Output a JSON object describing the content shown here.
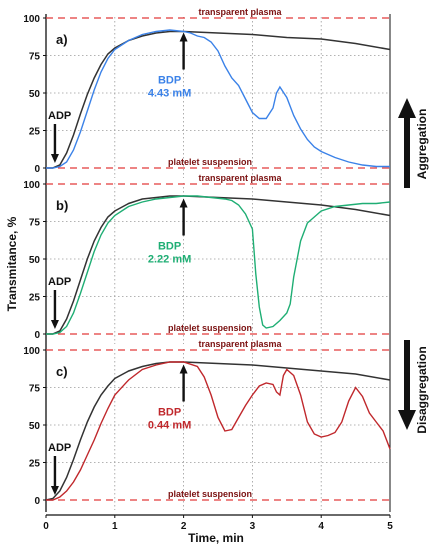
{
  "chart_data": {
    "type": "line",
    "ylabel": "Transmitance, %",
    "xlabel": "Time, min",
    "xlim": [
      0,
      5
    ],
    "ylim": [
      0,
      100
    ],
    "xticks": [
      0,
      1,
      2,
      3,
      4,
      5
    ],
    "yticks": [
      0,
      25,
      50,
      75,
      100
    ],
    "grid": true,
    "ref_top_label": "transparent plasma",
    "ref_bottom_label": "platelet suspension",
    "adp_label": "ADP",
    "adp_time": 0.13,
    "agent_time": 2.0,
    "side_labels": {
      "top": "Aggregation",
      "bottom": "Disaggregation"
    },
    "colors": {
      "control": "#333333",
      "a": "#3b82e8",
      "b": "#1fae74",
      "c": "#c0282c",
      "ref": "#e23b3b"
    },
    "panels": [
      {
        "label": "a)",
        "agent": "BDP",
        "dose": "4.43 mM",
        "control": {
          "x": [
            0,
            0.1,
            0.2,
            0.3,
            0.4,
            0.5,
            0.6,
            0.7,
            0.8,
            0.9,
            1.0,
            1.2,
            1.4,
            1.6,
            1.8,
            2.0,
            2.5,
            3.0,
            3.5,
            4.0,
            4.5,
            5.0
          ],
          "y": [
            0,
            0,
            2,
            10,
            22,
            36,
            49,
            60,
            69,
            76,
            80,
            85,
            88,
            90,
            91,
            91,
            90,
            89,
            87,
            86,
            83,
            79
          ]
        },
        "series": {
          "x": [
            0,
            0.1,
            0.2,
            0.3,
            0.4,
            0.5,
            0.6,
            0.7,
            0.8,
            0.9,
            1.0,
            1.2,
            1.4,
            1.6,
            1.8,
            2.0,
            2.1,
            2.2,
            2.3,
            2.4,
            2.5,
            2.6,
            2.7,
            2.8,
            2.9,
            3.0,
            3.1,
            3.2,
            3.3,
            3.35,
            3.4,
            3.5,
            3.6,
            3.7,
            3.8,
            3.9,
            4.0,
            4.2,
            4.4,
            4.6,
            4.8,
            5.0
          ],
          "y": [
            0,
            0,
            1,
            4,
            12,
            24,
            38,
            52,
            64,
            73,
            79,
            85,
            89,
            91,
            92,
            91,
            90,
            88,
            87,
            84,
            78,
            68,
            60,
            55,
            46,
            37,
            33,
            33,
            40,
            50,
            54,
            47,
            35,
            26,
            19,
            14,
            11,
            7,
            4,
            2,
            1,
            1
          ]
        }
      },
      {
        "label": "b)",
        "agent": "BDP",
        "dose": "2.22 mM",
        "control": {
          "x": [
            0,
            0.1,
            0.2,
            0.3,
            0.4,
            0.5,
            0.6,
            0.7,
            0.8,
            0.9,
            1.0,
            1.2,
            1.4,
            1.6,
            1.8,
            2.0,
            2.5,
            3.0,
            3.5,
            4.0,
            4.5,
            5.0
          ],
          "y": [
            0,
            0,
            2,
            10,
            22,
            36,
            50,
            62,
            71,
            78,
            82,
            87,
            90,
            91,
            92,
            92,
            91,
            90,
            88,
            86,
            83,
            79
          ]
        },
        "series": {
          "x": [
            0,
            0.1,
            0.2,
            0.3,
            0.4,
            0.5,
            0.6,
            0.7,
            0.8,
            0.9,
            1.0,
            1.2,
            1.4,
            1.6,
            1.8,
            2.0,
            2.2,
            2.4,
            2.6,
            2.7,
            2.8,
            2.9,
            3.0,
            3.05,
            3.1,
            3.15,
            3.2,
            3.3,
            3.4,
            3.5,
            3.55,
            3.6,
            3.7,
            3.8,
            4.0,
            4.2,
            4.4,
            4.6,
            4.8,
            5.0
          ],
          "y": [
            0,
            0,
            1,
            5,
            14,
            27,
            41,
            55,
            66,
            74,
            79,
            85,
            88,
            90,
            91,
            92,
            92,
            91,
            90,
            89,
            86,
            80,
            70,
            40,
            18,
            6,
            4,
            5,
            9,
            14,
            20,
            38,
            62,
            74,
            82,
            85,
            86,
            87,
            87,
            88
          ]
        }
      },
      {
        "label": "c)",
        "agent": "BDP",
        "dose": "0.44 mM",
        "control": {
          "x": [
            0,
            0.1,
            0.2,
            0.3,
            0.4,
            0.5,
            0.6,
            0.7,
            0.8,
            0.9,
            1.0,
            1.2,
            1.4,
            1.6,
            1.8,
            2.0,
            2.5,
            3.0,
            3.5,
            4.0,
            4.5,
            5.0
          ],
          "y": [
            0,
            1,
            6,
            15,
            27,
            40,
            52,
            62,
            70,
            76,
            81,
            86,
            89,
            91,
            92,
            92,
            91,
            90,
            88,
            86,
            84,
            80
          ]
        },
        "series": {
          "x": [
            0,
            0.1,
            0.2,
            0.3,
            0.4,
            0.5,
            0.6,
            0.7,
            0.8,
            0.9,
            1.0,
            1.2,
            1.4,
            1.6,
            1.8,
            2.0,
            2.2,
            2.3,
            2.4,
            2.5,
            2.6,
            2.7,
            2.8,
            2.9,
            3.0,
            3.1,
            3.2,
            3.3,
            3.35,
            3.4,
            3.45,
            3.5,
            3.6,
            3.7,
            3.8,
            3.9,
            4.0,
            4.1,
            4.2,
            4.3,
            4.4,
            4.5,
            4.6,
            4.7,
            4.8,
            4.9,
            5.0
          ],
          "y": [
            0,
            0,
            2,
            6,
            12,
            20,
            30,
            40,
            51,
            61,
            70,
            80,
            87,
            90,
            92,
            92,
            89,
            82,
            70,
            55,
            46,
            47,
            55,
            63,
            70,
            76,
            78,
            77,
            72,
            70,
            83,
            87,
            83,
            70,
            52,
            44,
            42,
            43,
            45,
            52,
            66,
            75,
            69,
            58,
            52,
            46,
            34
          ]
        }
      }
    ]
  }
}
